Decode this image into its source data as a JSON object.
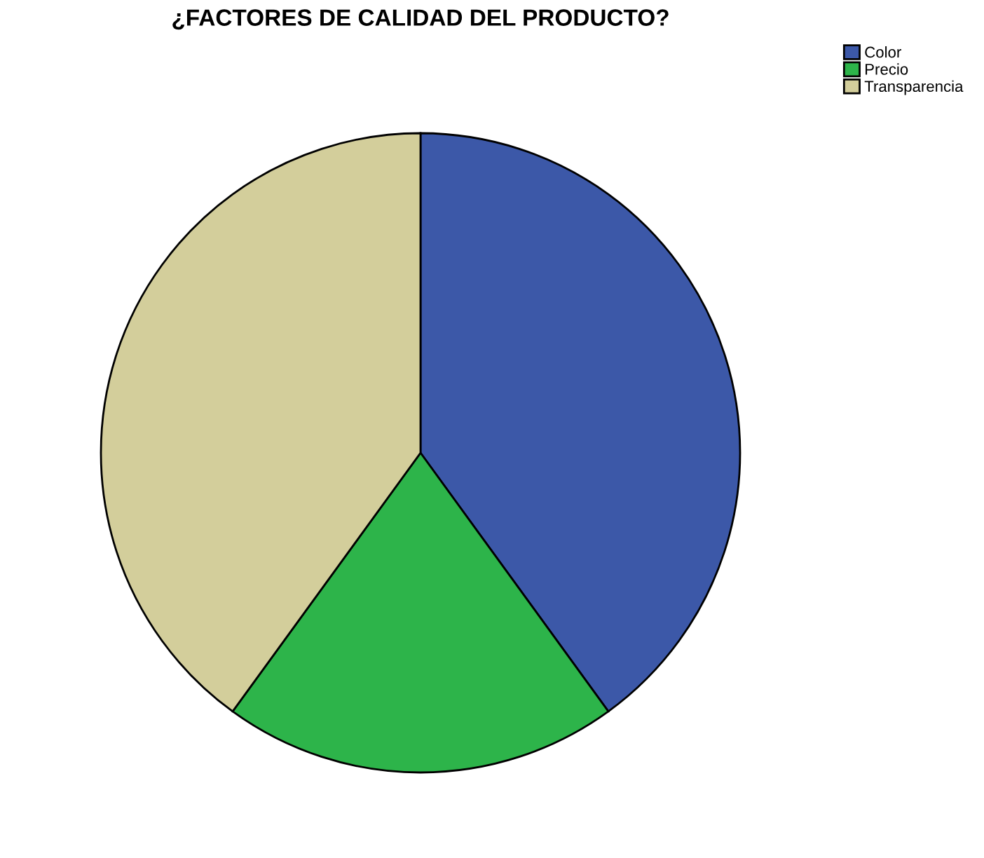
{
  "chart_data": {
    "type": "pie",
    "title": "¿FACTORES DE CALIDAD DEL PRODUCTO?",
    "categories": [
      "Color",
      "Precio",
      "Transparencia"
    ],
    "values": [
      40,
      20,
      40
    ],
    "colors": [
      "#3c58a8",
      "#2db44a",
      "#d3ce9b"
    ],
    "legend": "top right"
  }
}
